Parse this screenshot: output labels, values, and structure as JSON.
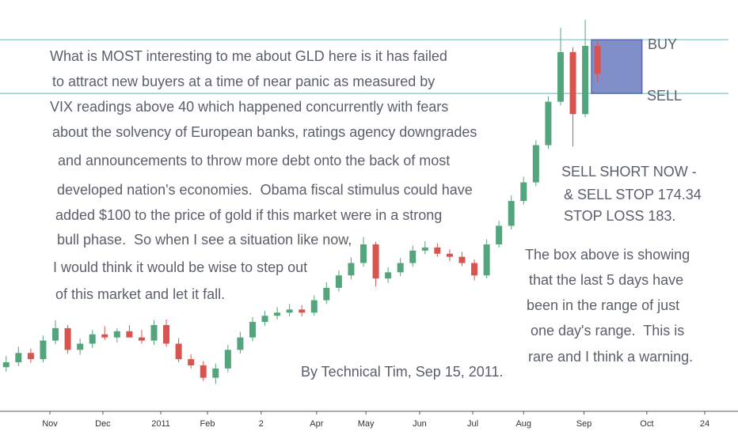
{
  "chart_data": {
    "type": "candlestick",
    "open": [
      130.2,
      131.0,
      132.5,
      131.5,
      134.5,
      136.5,
      133.0,
      134.0,
      135.5,
      135.0,
      136.0,
      135.0,
      134.5,
      137.0,
      134.0,
      131.5,
      130.5,
      128.5,
      130.0,
      133.0,
      135.0,
      137.5,
      138.5,
      139.0,
      139.5,
      139.0,
      141.0,
      143.0,
      145.0,
      147.0,
      150.0,
      144.5,
      145.5,
      147.0,
      149.0,
      149.5,
      148.5,
      148.0,
      147.0,
      145.0,
      150.0,
      153.0,
      157.0,
      160.0,
      166.0,
      173.0,
      181.0,
      171.0,
      182.0
    ],
    "high": [
      132.0,
      133.5,
      133.2,
      135.3,
      137.8,
      137.0,
      134.8,
      136.2,
      136.8,
      136.5,
      137.0,
      136.2,
      137.8,
      137.9,
      134.9,
      132.3,
      131.2,
      130.8,
      133.8,
      135.9,
      138.3,
      139.3,
      139.9,
      140.4,
      140.2,
      141.8,
      143.9,
      145.8,
      147.9,
      151.2,
      150.4,
      146.3,
      147.8,
      149.8,
      150.5,
      150.2,
      149.2,
      148.8,
      147.6,
      150.8,
      153.8,
      157.9,
      160.9,
      166.8,
      173.9,
      184.9,
      181.8,
      186.2,
      182.8
    ],
    "low": [
      129.5,
      130.4,
      130.9,
      131.0,
      133.9,
      132.4,
      132.2,
      133.3,
      134.6,
      134.2,
      135.2,
      134.0,
      133.8,
      133.5,
      131.0,
      130.0,
      128.0,
      127.5,
      129.4,
      132.4,
      134.4,
      136.9,
      137.9,
      138.4,
      138.4,
      138.5,
      140.4,
      142.4,
      144.4,
      146.4,
      143.2,
      143.8,
      144.9,
      146.4,
      148.4,
      148.0,
      147.3,
      146.5,
      144.2,
      144.5,
      149.5,
      152.4,
      156.4,
      159.4,
      165.4,
      172.4,
      165.8,
      170.5,
      176.2
    ],
    "close": [
      131.0,
      132.5,
      131.5,
      134.5,
      136.5,
      133.0,
      134.0,
      135.5,
      135.0,
      136.0,
      135.0,
      134.5,
      137.0,
      134.0,
      131.5,
      130.5,
      128.5,
      130.0,
      133.0,
      135.0,
      137.5,
      138.5,
      139.0,
      139.5,
      139.0,
      141.0,
      143.0,
      145.0,
      147.0,
      150.0,
      144.5,
      145.5,
      147.0,
      149.0,
      149.5,
      148.5,
      148.0,
      147.0,
      145.0,
      150.0,
      153.0,
      157.0,
      160.0,
      166.0,
      173.0,
      181.0,
      171.0,
      182.0,
      177.5
    ],
    "up_color": "#53a57b",
    "down_color": "#d9534f",
    "xlim": [
      0,
      59
    ],
    "xticks": [
      {
        "value": 4.05,
        "label": "Nov"
      },
      {
        "value": 8.35,
        "label": "Dec"
      },
      {
        "value": 13.05,
        "label": "2011"
      },
      {
        "value": 16.84,
        "label": "Feb"
      },
      {
        "value": 21.2,
        "label": "2"
      },
      {
        "value": 25.7,
        "label": "Apr"
      },
      {
        "value": 29.7,
        "label": "May"
      },
      {
        "value": 34.06,
        "label": "Jun"
      },
      {
        "value": 38.37,
        "label": "Jul"
      },
      {
        "value": 42.5,
        "label": "Aug"
      },
      {
        "value": 47.4,
        "label": "Sep"
      },
      {
        "value": 52.5,
        "label": "Oct"
      },
      {
        "value": 57.2,
        "label": "24"
      }
    ],
    "ylim": [
      123.1,
      189.4
    ],
    "levels": [
      {
        "value": 183,
        "label": "BUY"
      },
      {
        "value": 174.34,
        "label": "SELL"
      }
    ],
    "level_color": "#7fc4c9",
    "box_color": "#4a5fb0",
    "annotations": [
      "What is MOST interesting to me about GLD here is it has failed",
      "to attract new buyers at a time of near panic as measured by",
      "VIX readings above 40 which happened concurrently with fears",
      "about the solvency of European banks, ratings agency downgrades",
      "and announcements to throw more debt onto the back of most",
      "developed nation's economies.  Obama fiscal stimulus could have",
      "added $100 to the price of gold if this market were in a strong",
      "bull phase.  So when I see a situation like now,",
      "I would think it would be wise to step out",
      "of this market and let it fall."
    ],
    "trade_notes": [
      "SELL SHORT NOW -",
      "& SELL STOP 174.34",
      "STOP LOSS 183."
    ],
    "box_notes": [
      "The box above is showing",
      "that the last 5 days have",
      "been in the range of just",
      "one day's range.  This is",
      "rare and I think a warning."
    ],
    "byline": "By Technical Tim, Sep 15, 2011."
  }
}
